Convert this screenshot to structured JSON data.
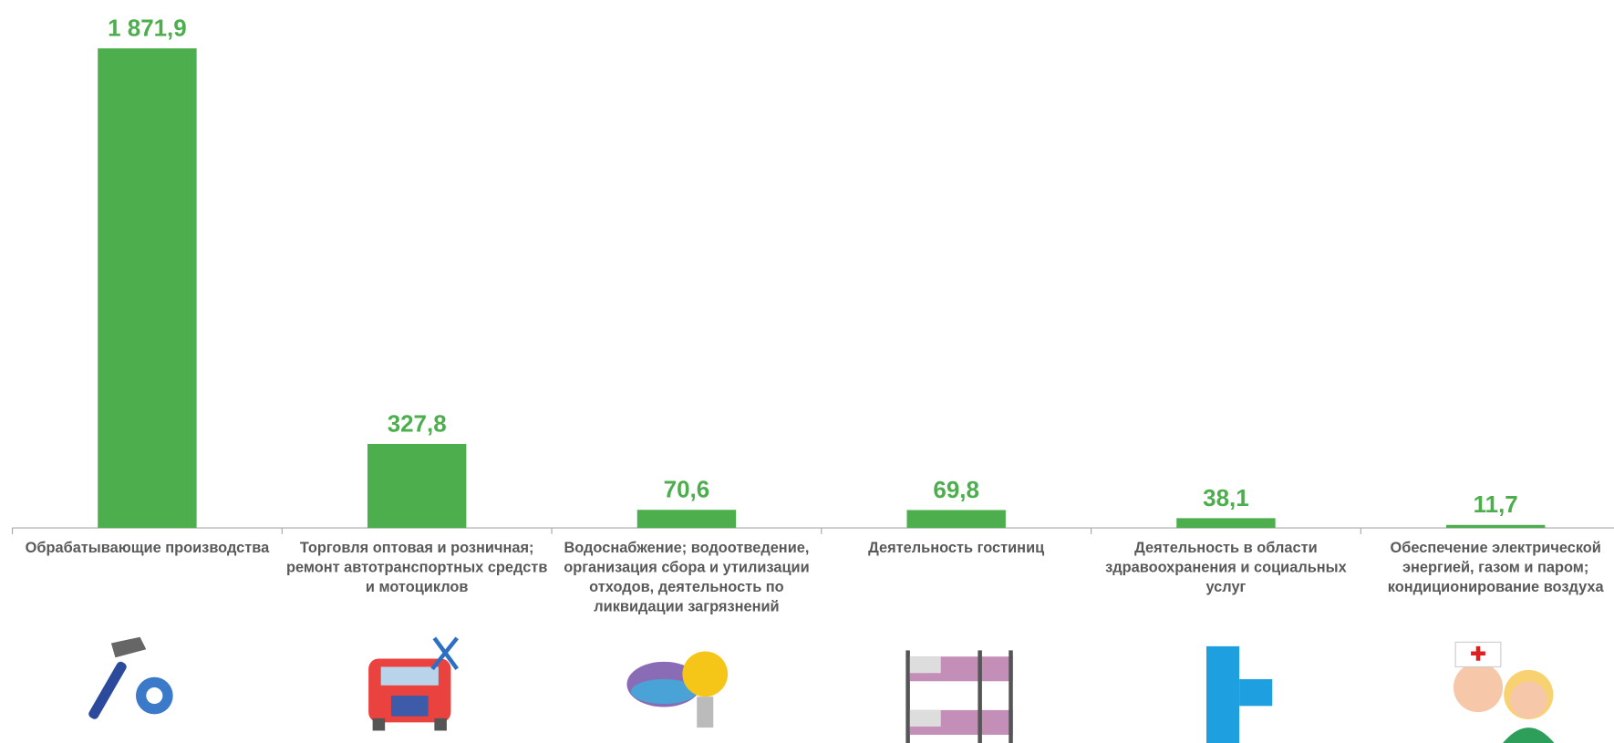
{
  "chart_data": {
    "type": "bar",
    "categories": [
      "Обрабатывающие производства",
      "Торговля оптовая и розничная; ремонт автотранспортных средств и мотоциклов",
      "Водоснабжение; водоотведение, организация сбора и утилизации отходов, деятельность по ликвидации загрязнений",
      "Деятельность гостиниц",
      "Деятельность в области здравоохранения и социальных услуг",
      "Обеспечение электрической энергией, газом и паром; кондиционирование воздуха"
    ],
    "values": [
      1871.9,
      327.8,
      70.6,
      69.8,
      38.1,
      11.7
    ],
    "value_labels": [
      "1 871,9",
      "327,8",
      "70,6",
      "69,8",
      "38,1",
      "11,7"
    ],
    "color": "#4cae4c"
  }
}
